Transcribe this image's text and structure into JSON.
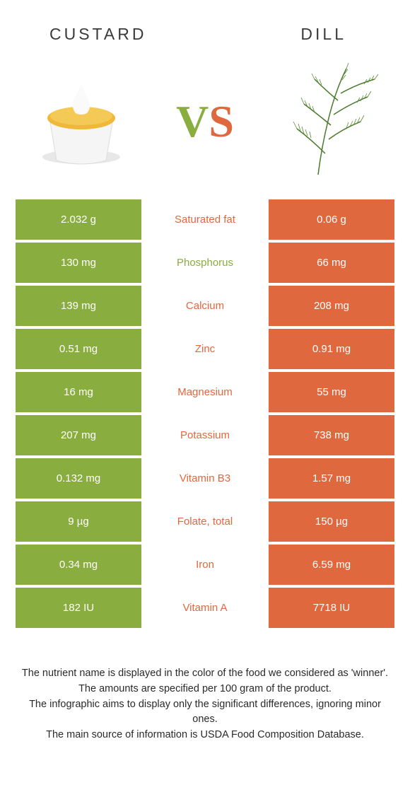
{
  "colors": {
    "custard": "#8aad3f",
    "dill": "#e0683e",
    "text": "#3a3a3a"
  },
  "left_title": "CUSTARD",
  "right_title": "DILL",
  "vs_v": "V",
  "vs_s": "S",
  "rows": [
    {
      "left": "2.032 g",
      "label": "Saturated fat",
      "right": "0.06 g",
      "winner": "dill"
    },
    {
      "left": "130 mg",
      "label": "Phosphorus",
      "right": "66 mg",
      "winner": "custard"
    },
    {
      "left": "139 mg",
      "label": "Calcium",
      "right": "208 mg",
      "winner": "dill"
    },
    {
      "left": "0.51 mg",
      "label": "Zinc",
      "right": "0.91 mg",
      "winner": "dill"
    },
    {
      "left": "16 mg",
      "label": "Magnesium",
      "right": "55 mg",
      "winner": "dill"
    },
    {
      "left": "207 mg",
      "label": "Potassium",
      "right": "738 mg",
      "winner": "dill"
    },
    {
      "left": "0.132 mg",
      "label": "Vitamin B3",
      "right": "1.57 mg",
      "winner": "dill"
    },
    {
      "left": "9 µg",
      "label": "Folate, total",
      "right": "150 µg",
      "winner": "dill"
    },
    {
      "left": "0.34 mg",
      "label": "Iron",
      "right": "6.59 mg",
      "winner": "dill"
    },
    {
      "left": "182 IU",
      "label": "Vitamin A",
      "right": "7718 IU",
      "winner": "dill"
    }
  ],
  "footer_lines": [
    "The nutrient name is displayed in the color of the food we considered as 'winner'.",
    "The amounts are specified per 100 gram of the product.",
    "The infographic aims to display only the significant differences, ignoring minor ones.",
    "The main source of information is USDA Food Composition Database."
  ]
}
